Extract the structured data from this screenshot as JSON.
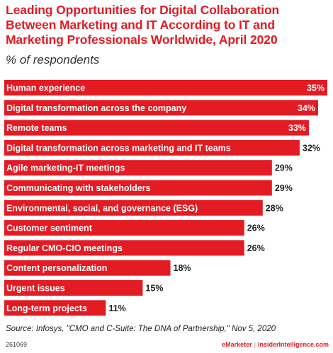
{
  "header": {
    "title": "Leading Opportunities for Digital Collaboration Between Marketing and IT According to IT and Marketing Professionals Worldwide, April 2020",
    "subtitle": "% of respondents"
  },
  "chart_data": {
    "type": "bar",
    "orientation": "horizontal",
    "categories": [
      "Human experience",
      "Digital transformation across the company",
      "Remote teams",
      "Digital transformation across marketing and IT teams",
      "Agile marketing-IT meetings",
      "Communicating with stakeholders",
      "Environmental, social, and governance (ESG)",
      "Customer sentiment",
      "Regular CMO-CIO meetings",
      "Content personalization",
      "Urgent issues",
      "Long-term projects"
    ],
    "values": [
      35,
      34,
      33,
      32,
      29,
      29,
      28,
      26,
      26,
      18,
      15,
      11
    ],
    "value_labels": [
      "35%",
      "34%",
      "33%",
      "32%",
      "29%",
      "29%",
      "28%",
      "26%",
      "26%",
      "18%",
      "15%",
      "11%"
    ],
    "xlim": [
      0,
      35
    ],
    "grid": false,
    "bar_color": "#e31b23"
  },
  "source": "Source: Infosys, \"CMO and C-Suite: The DNA of Partnership,\" Nov 5, 2020",
  "footer": {
    "id": "261069",
    "brand_left": "eMarketer",
    "brand_separator": "|",
    "brand_right": "InsiderIntelligence.com"
  }
}
